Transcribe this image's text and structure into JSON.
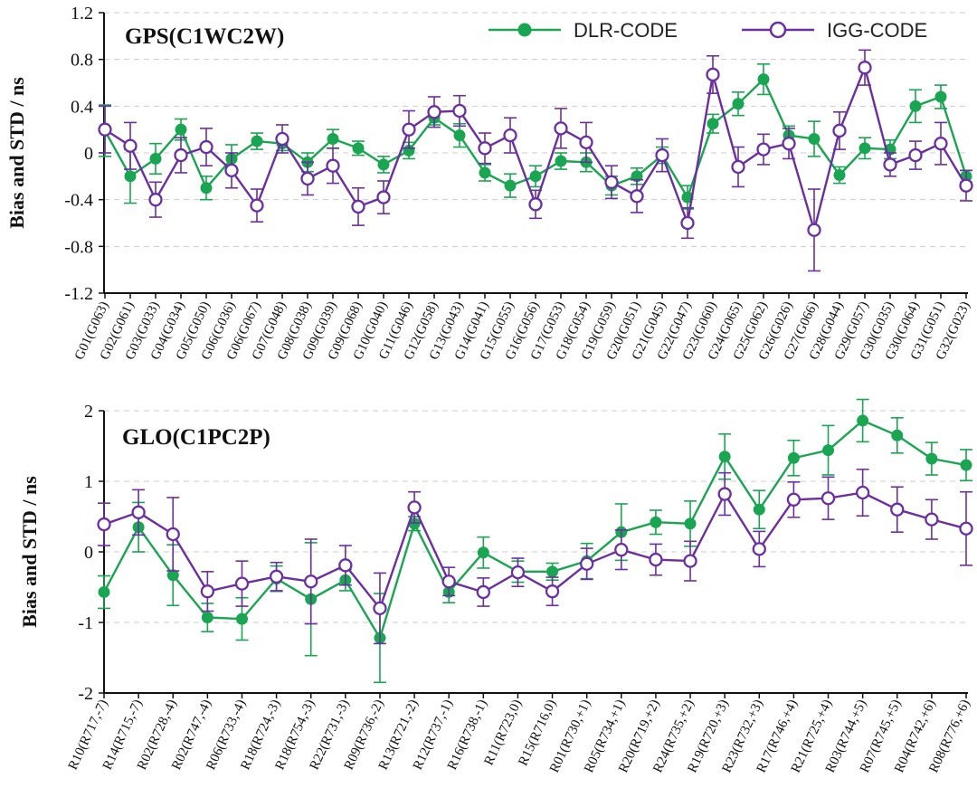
{
  "colors": {
    "dlr": "#1aa552",
    "igg": "#6a2fa0",
    "axis": "#111111",
    "grid": "#cccccc"
  },
  "legend": {
    "placement": "top-right",
    "dlr_label": "DLR-CODE",
    "igg_label": "IGG-CODE"
  },
  "chart_data": [
    {
      "type": "line",
      "title": "GPS(C1WC2W)",
      "ylabel": "Bias and STD / ns",
      "xlabel": "",
      "ylim": [
        -1.2,
        1.2
      ],
      "yticks": [
        -1.2,
        -0.8,
        -0.4,
        0,
        0.4,
        0.8,
        1.2
      ],
      "ytick_labels": [
        "-1.2",
        "-0.8",
        "-0.4",
        "0",
        "0.4",
        "0.8",
        "1.2"
      ],
      "grid": "horizontal dashed",
      "categories": [
        "G01(G063)",
        "G02(G061)",
        "G03(G033)",
        "G04(G034)",
        "G05(G050)",
        "G06(G036)",
        "G06(G067)",
        "G07(G048)",
        "G08(G038)",
        "G09(G039)",
        "G09(G068)",
        "G10(G040)",
        "G11(G046)",
        "G12(G058)",
        "G13(G043)",
        "G14(G041)",
        "G15(G055)",
        "G16(G056)",
        "G17(G053)",
        "G18(G054)",
        "G19(G059)",
        "G20(G051)",
        "G21(G045)",
        "G22(G047)",
        "G23(G060)",
        "G24(G065)",
        "G25(G062)",
        "G26(G026)",
        "G27(G066)",
        "G28(G044)",
        "G29(G057)",
        "G30(G035)",
        "G30(G064)",
        "G31(G051)",
        "G32(G023)"
      ],
      "series": [
        {
          "name": "DLR-CODE",
          "marker": "filled-circle",
          "values": [
            0.19,
            -0.2,
            -0.05,
            0.2,
            -0.3,
            -0.05,
            0.1,
            0.08,
            -0.08,
            0.12,
            0.04,
            -0.1,
            0.02,
            0.3,
            0.15,
            -0.17,
            -0.28,
            -0.2,
            -0.07,
            -0.08,
            -0.28,
            -0.2,
            -0.02,
            -0.38,
            0.25,
            0.42,
            0.63,
            0.15,
            0.12,
            -0.19,
            0.04,
            0.03,
            0.4,
            0.48,
            -0.2
          ],
          "errors": [
            0.22,
            0.23,
            0.13,
            0.09,
            0.1,
            0.12,
            0.07,
            0.06,
            0.08,
            0.08,
            0.06,
            0.07,
            0.07,
            0.06,
            0.1,
            0.07,
            0.1,
            0.09,
            0.07,
            0.08,
            0.08,
            0.07,
            0.07,
            0.1,
            0.08,
            0.1,
            0.13,
            0.08,
            0.15,
            0.07,
            0.09,
            0.08,
            0.14,
            0.1,
            0.05
          ]
        },
        {
          "name": "IGG-CODE",
          "marker": "open-circle",
          "values": [
            0.2,
            0.06,
            -0.4,
            -0.02,
            0.05,
            -0.15,
            -0.45,
            0.12,
            -0.22,
            -0.11,
            -0.46,
            -0.38,
            0.2,
            0.35,
            0.36,
            0.04,
            0.15,
            -0.44,
            0.21,
            0.09,
            -0.25,
            -0.37,
            -0.02,
            -0.6,
            0.67,
            -0.12,
            0.03,
            0.08,
            -0.66,
            0.19,
            0.73,
            -0.1,
            -0.02,
            0.08,
            -0.28
          ],
          "errors": [
            0.2,
            0.2,
            0.15,
            0.15,
            0.16,
            0.15,
            0.14,
            0.12,
            0.14,
            0.15,
            0.16,
            0.14,
            0.16,
            0.13,
            0.13,
            0.13,
            0.15,
            0.12,
            0.17,
            0.17,
            0.14,
            0.14,
            0.14,
            0.13,
            0.16,
            0.17,
            0.13,
            0.13,
            0.35,
            0.16,
            0.15,
            0.1,
            0.12,
            0.18,
            0.13
          ]
        }
      ]
    },
    {
      "type": "line",
      "title": "GLO(C1PC2P)",
      "ylabel": "Bias and STD / ns",
      "xlabel": "",
      "ylim": [
        -2,
        2
      ],
      "yticks": [
        -2,
        -1,
        0,
        1,
        2
      ],
      "ytick_labels": [
        "-2",
        "-1",
        "0",
        "1",
        "2"
      ],
      "grid": "horizontal dashed",
      "categories": [
        "R10(R717,-7)",
        "R14(R715,-7)",
        "R02(R728,-4)",
        "R02(R747,-4)",
        "R06(R733,-4)",
        "R18(R724,-3)",
        "R18(R754,-3)",
        "R22(R731,-3)",
        "R09(R736,-2)",
        "R13(R721,-2)",
        "R12(R737,-1)",
        "R16(R738,-1)",
        "R11(R723,0)",
        "R15(R716,0)",
        "R01(R730,+1)",
        "R05(R734,+1)",
        "R20(R719,+2)",
        "R24(R735,+2)",
        "R19(R720,+3)",
        "R23(R732,+3)",
        "R17(R746,+4)",
        "R21(R725,+4)",
        "R03(R744,+5)",
        "R07(R745,+5)",
        "R04(R742,+6)",
        "R08(R776,+6)"
      ],
      "series": [
        {
          "name": "DLR-CODE",
          "marker": "filled-circle",
          "values": [
            -0.57,
            0.35,
            -0.33,
            -0.93,
            -0.95,
            -0.38,
            -0.67,
            -0.4,
            -1.22,
            0.4,
            -0.57,
            -0.01,
            -0.28,
            -0.28,
            -0.13,
            0.28,
            0.42,
            0.4,
            1.35,
            0.6,
            1.33,
            1.44,
            1.86,
            1.65,
            1.32,
            1.23
          ],
          "errors": [
            0.23,
            0.35,
            0.43,
            0.2,
            0.3,
            0.18,
            0.8,
            0.15,
            0.63,
            0.1,
            0.15,
            0.22,
            0.15,
            0.12,
            0.25,
            0.4,
            0.17,
            0.32,
            0.32,
            0.27,
            0.25,
            0.35,
            0.3,
            0.25,
            0.23,
            0.22
          ]
        },
        {
          "name": "IGG-CODE",
          "marker": "open-circle",
          "values": [
            0.39,
            0.56,
            0.25,
            -0.56,
            -0.45,
            -0.35,
            -0.42,
            -0.19,
            -0.8,
            0.63,
            -0.42,
            -0.57,
            -0.29,
            -0.56,
            -0.17,
            0.03,
            -0.11,
            -0.13,
            0.82,
            0.04,
            0.74,
            0.76,
            0.84,
            0.6,
            0.46,
            0.33
          ],
          "errors": [
            0.3,
            0.32,
            0.52,
            0.28,
            0.32,
            0.2,
            0.6,
            0.28,
            0.5,
            0.22,
            0.2,
            0.2,
            0.2,
            0.2,
            0.22,
            0.28,
            0.22,
            0.28,
            0.3,
            0.25,
            0.25,
            0.3,
            0.33,
            0.32,
            0.28,
            0.52
          ]
        }
      ]
    }
  ]
}
